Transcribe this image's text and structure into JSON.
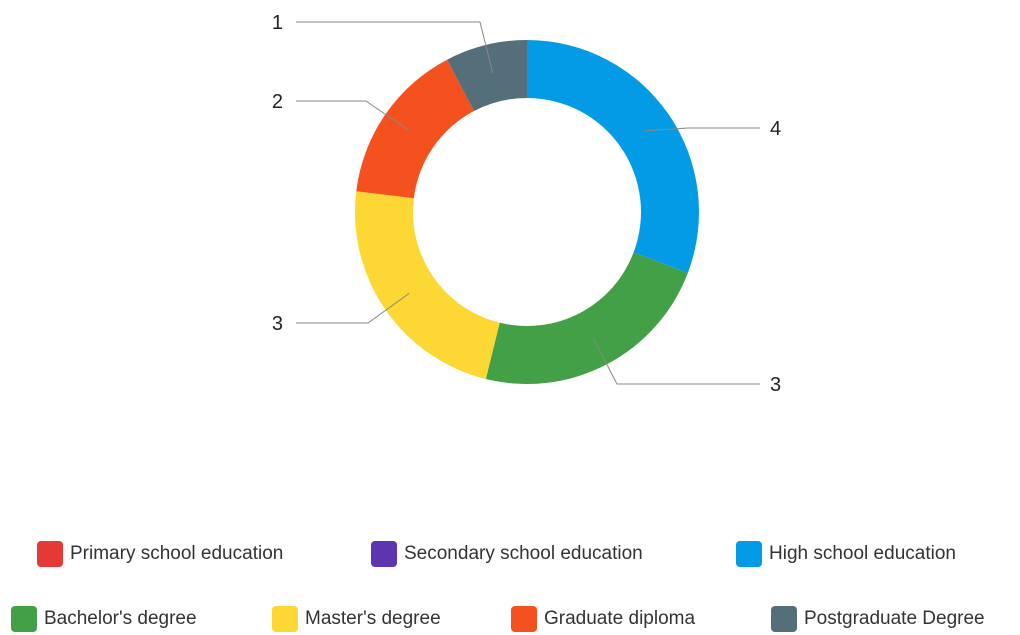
{
  "chart_data": {
    "type": "pie",
    "variant": "donut",
    "categories": [
      "Primary school education",
      "Secondary school education",
      "High school education",
      "Bachelor's degree",
      "Master's degree",
      "Graduate diploma",
      "Postgraduate Degree"
    ],
    "values": [
      0,
      0,
      4,
      3,
      3,
      2,
      1
    ],
    "colors": [
      "#e53935",
      "#5e35b1",
      "#039be5",
      "#43a047",
      "#fdd835",
      "#f4511e",
      "#546e7a"
    ],
    "legend_position": "bottom",
    "title": ""
  }
}
